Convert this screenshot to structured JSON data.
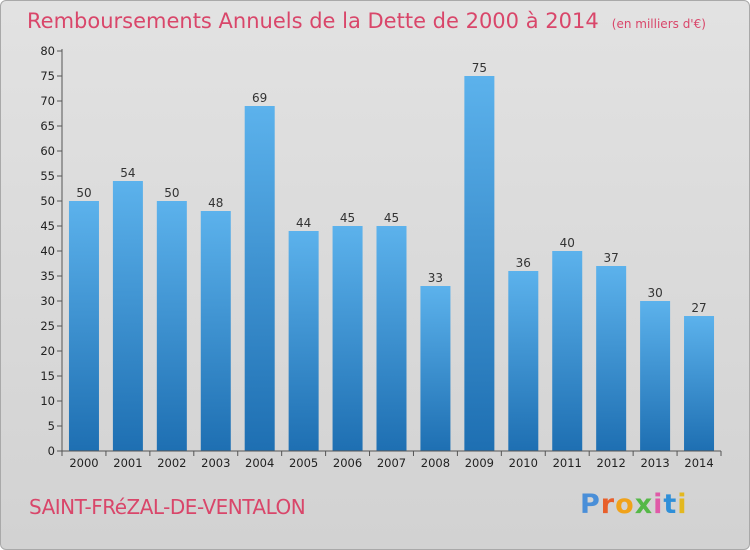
{
  "header": {
    "title": "Remboursements Annuels de la Dette de 2000 à 2014",
    "unit": "(en milliers d'€)"
  },
  "footer": {
    "commune": "SAINT-FRéZAL-DE-VENTALON",
    "logo_text": "Proxiti"
  },
  "colors": {
    "title": "#d9466a",
    "bar_top": "#5cb2ec",
    "bar_bottom": "#1e6fb2",
    "logo": [
      "#4a8fd8",
      "#e85f2a",
      "#f0a21a",
      "#55b847",
      "#e05aa8",
      "#2f8fd8",
      "#e3b81f"
    ]
  },
  "chart_data": {
    "type": "bar",
    "title": "Remboursements Annuels de la Dette de 2000 à 2014",
    "xlabel": "",
    "ylabel": "",
    "categories": [
      "2000",
      "2001",
      "2002",
      "2003",
      "2004",
      "2005",
      "2006",
      "2007",
      "2008",
      "2009",
      "2010",
      "2011",
      "2012",
      "2013",
      "2014"
    ],
    "values": [
      50,
      54,
      50,
      48,
      69,
      44,
      45,
      45,
      33,
      75,
      36,
      40,
      37,
      30,
      27
    ],
    "ylim": [
      0,
      80
    ],
    "yticks": [
      0,
      5,
      10,
      15,
      20,
      25,
      30,
      35,
      40,
      45,
      50,
      55,
      60,
      65,
      70,
      75,
      80
    ],
    "grid": false,
    "legend": "none"
  }
}
